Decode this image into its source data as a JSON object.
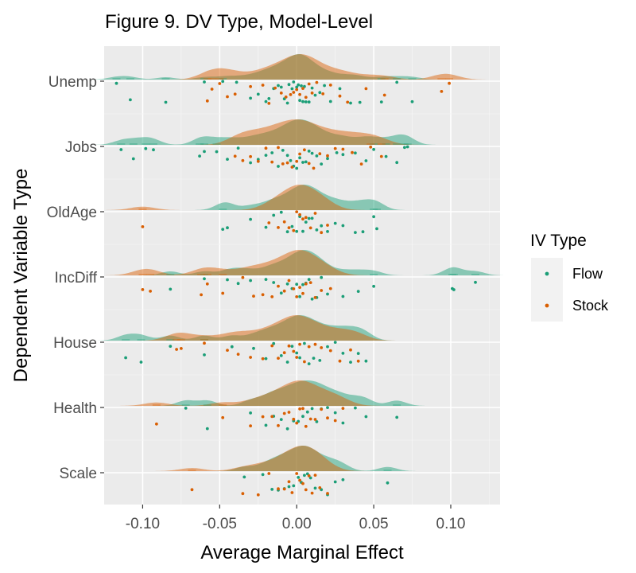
{
  "chart_data": {
    "type": "raincloud",
    "title": "Figure 9. DV Type, Model-Level",
    "xlabel": "Average Marginal Effect",
    "ylabel": "Dependent Variable Type",
    "xlim": [
      -0.125,
      0.132
    ],
    "x_ticks": [
      -0.1,
      -0.05,
      0.0,
      0.05,
      0.1
    ],
    "x_tick_labels": [
      "-0.10",
      "-0.05",
      "0.00",
      "0.05",
      "0.10"
    ],
    "categories": [
      "Unemp",
      "Jobs",
      "OldAge",
      "IncDiff",
      "House",
      "Health",
      "Scale"
    ],
    "grid": true,
    "legend": {
      "title": "IV Type",
      "position": "right"
    },
    "series": [
      {
        "name": "Flow",
        "color": "#1b9e77",
        "values": {
          "Unemp": [
            -0.117,
            -0.108,
            -0.085,
            -0.06,
            -0.048,
            -0.039,
            -0.03,
            -0.025,
            -0.02,
            -0.018,
            -0.015,
            -0.012,
            -0.01,
            -0.008,
            -0.006,
            -0.005,
            -0.003,
            -0.002,
            0.0,
            0.001,
            0.002,
            0.003,
            0.004,
            0.005,
            0.006,
            0.008,
            0.01,
            0.012,
            0.015,
            0.018,
            0.022,
            0.028,
            0.035,
            0.041,
            0.055,
            0.065,
            0.075
          ],
          "Jobs": [
            -0.114,
            -0.106,
            -0.098,
            -0.093,
            -0.063,
            -0.06,
            -0.052,
            -0.045,
            -0.038,
            -0.03,
            -0.025,
            -0.02,
            -0.016,
            -0.012,
            -0.009,
            -0.006,
            -0.004,
            -0.002,
            0.0,
            0.002,
            0.004,
            0.006,
            0.008,
            0.01,
            0.013,
            0.016,
            0.02,
            0.026,
            0.03,
            0.038,
            0.045,
            0.05,
            0.058,
            0.065,
            0.07,
            0.072
          ],
          "OldAge": [
            -0.048,
            -0.045,
            -0.03,
            -0.02,
            -0.015,
            -0.01,
            -0.006,
            -0.003,
            0.0,
            0.002,
            0.004,
            0.006,
            0.008,
            0.01,
            0.013,
            0.016,
            0.02,
            0.025,
            0.03,
            0.038,
            0.043,
            0.05,
            0.052
          ],
          "IncDiff": [
            -0.082,
            -0.06,
            -0.045,
            -0.038,
            -0.03,
            -0.02,
            -0.015,
            -0.01,
            -0.006,
            -0.003,
            0.0,
            0.002,
            0.004,
            0.006,
            0.008,
            0.01,
            0.013,
            0.016,
            0.02,
            0.03,
            0.04,
            0.05,
            0.101,
            0.102,
            0.116
          ],
          "House": [
            -0.111,
            -0.101,
            -0.082,
            -0.06,
            -0.042,
            -0.028,
            -0.02,
            -0.015,
            -0.01,
            -0.006,
            -0.003,
            0.0,
            0.002,
            0.005,
            0.008,
            0.011,
            0.015,
            0.02,
            0.025,
            0.03,
            0.035,
            0.04,
            0.045
          ],
          "Health": [
            -0.072,
            -0.058,
            -0.03,
            -0.02,
            -0.015,
            -0.01,
            -0.006,
            -0.002,
            0.001,
            0.004,
            0.007,
            0.01,
            0.013,
            0.016,
            0.02,
            0.025,
            0.03,
            0.038,
            0.045,
            0.065
          ],
          "Scale": [
            -0.034,
            -0.022,
            -0.016,
            -0.012,
            -0.008,
            -0.005,
            -0.002,
            0.001,
            0.003,
            0.005,
            0.007,
            0.009,
            0.012,
            0.016,
            0.02,
            0.025,
            0.03,
            0.059
          ]
        }
      },
      {
        "name": "Stock",
        "color": "#d95f02",
        "values": {
          "Unemp": [
            -0.058,
            -0.055,
            -0.05,
            -0.045,
            -0.04,
            -0.03,
            -0.022,
            -0.018,
            -0.014,
            -0.01,
            -0.007,
            -0.004,
            -0.002,
            0.0,
            0.002,
            0.004,
            0.006,
            0.008,
            0.01,
            0.013,
            0.017,
            0.022,
            0.028,
            0.033,
            0.045,
            0.057,
            0.094,
            0.099
          ],
          "Jobs": [
            -0.04,
            -0.035,
            -0.03,
            -0.025,
            -0.02,
            -0.016,
            -0.012,
            -0.009,
            -0.006,
            -0.003,
            0.0,
            0.002,
            0.005,
            0.008,
            0.011,
            0.015,
            0.02,
            0.025,
            0.03,
            0.036,
            0.042,
            0.048,
            0.055
          ],
          "OldAge": [
            -0.1,
            -0.018,
            -0.012,
            -0.008,
            -0.005,
            -0.002,
            0.0,
            0.002,
            0.004,
            0.006,
            0.009,
            0.012,
            0.016,
            0.02
          ],
          "IncDiff": [
            -0.1,
            -0.095,
            -0.062,
            -0.058,
            -0.048,
            -0.035,
            -0.028,
            -0.022,
            -0.016,
            -0.012,
            -0.008,
            -0.005,
            -0.002,
            0.0,
            0.002,
            0.004,
            0.006,
            0.009,
            0.012,
            0.016,
            0.022
          ],
          "House": [
            -0.078,
            -0.075,
            -0.06,
            -0.045,
            -0.038,
            -0.03,
            -0.022,
            -0.016,
            -0.012,
            -0.008,
            -0.005,
            -0.002,
            0.0,
            0.002,
            0.005,
            0.008,
            0.012,
            0.016,
            0.022,
            0.028,
            0.035,
            0.04
          ],
          "Health": [
            -0.091,
            -0.048,
            -0.03,
            -0.022,
            -0.016,
            -0.012,
            -0.008,
            -0.005,
            -0.002,
            0.0,
            0.002,
            0.004,
            0.006,
            0.009,
            0.012,
            0.016,
            0.02,
            0.025,
            0.03
          ],
          "Scale": [
            -0.068,
            -0.035,
            -0.025,
            -0.018,
            -0.012,
            -0.008,
            -0.005,
            -0.003,
            0.0,
            0.002,
            0.004,
            0.006,
            0.008,
            0.01,
            0.012,
            0.015,
            0.02
          ]
        }
      }
    ]
  }
}
